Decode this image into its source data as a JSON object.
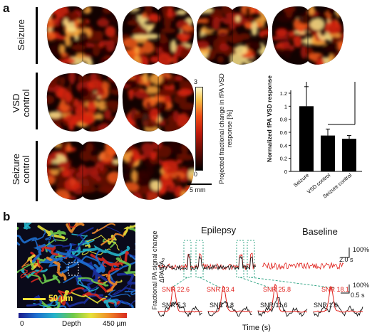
{
  "panel_a": {
    "letter": "a",
    "row_labels": [
      "Seizure",
      "VSD\ncontrol",
      "Seizure\ncontrol"
    ],
    "colorbar": {
      "max": "3",
      "min": "0",
      "label": "Projected fractional change in fPA VSD response [%]"
    },
    "scalebar": "5 mm",
    "colors": {
      "low": "#000000",
      "mid": "#d21a0c",
      "high": "#fff3a0"
    }
  },
  "chart_data": {
    "type": "bar",
    "categories": [
      "Seizure",
      "VSD control",
      "Seizure control"
    ],
    "values": [
      1.0,
      0.55,
      0.5
    ],
    "errors": [
      0.3,
      0.1,
      0.05
    ],
    "ylabel": "Normalized fPA VSD response",
    "ylim": [
      0,
      1.2
    ],
    "yticks": [
      "0",
      "0.2",
      "0.4",
      "0.6",
      "0.8",
      "1",
      "1.2"
    ],
    "significance": "*"
  },
  "panel_b": {
    "letter": "b",
    "scalebar": "50 µm",
    "depth_label": "Depth",
    "depth_min": "0",
    "depth_max": "450 µm",
    "trace_ylabel": "Fractional PA signal change",
    "trace_ylabel2": "ΔPA/PA₀",
    "epilepsy_title": "Epilepsy",
    "baseline_title": "Baseline",
    "scale_top_y": "100%",
    "scale_top_x": "2.0 s",
    "scale_bot_y": "100%",
    "scale_bot_x": "0.5 s",
    "xlabel": "Time (s)",
    "snr_red": [
      "SNR 22.6",
      "SNR 23.4",
      "SNR 25.8",
      "SNR 18.1"
    ],
    "snr_black": [
      "SNR 5.3",
      "SNR 7.8",
      "SNR 11.6",
      "SNR 1.6"
    ],
    "colors": {
      "red": "#e0201b",
      "black": "#111111",
      "dashed": "#3aa88a"
    }
  }
}
